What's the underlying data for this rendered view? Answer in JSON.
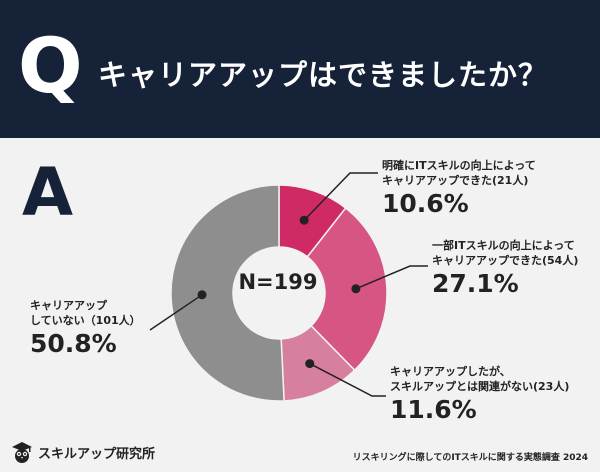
{
  "header": {
    "q_letter": "Q",
    "question": "キャリアアップはできましたか？"
  },
  "answer_letter": "A",
  "center_label": "N=199",
  "chart_data": {
    "type": "pie",
    "slices": [
      {
        "label_lines": [
          "明確にITスキルの向上によって",
          "キャリアアップできた(21人)"
        ],
        "value": 10.6,
        "value_label": "10.6%",
        "color": "#d02a66"
      },
      {
        "label_lines": [
          "一部ITスキルの向上によって",
          "キャリアアップできた(54人)"
        ],
        "value": 27.1,
        "value_label": "27.1%",
        "color": "#d65585"
      },
      {
        "label_lines": [
          "キャリアアップしたが、",
          "スキルアップとは関連がない(23人)"
        ],
        "value": 11.6,
        "value_label": "11.6%",
        "color": "#d67f9f"
      },
      {
        "label_lines": [
          "キャリアアップ",
          "していない（101人）"
        ],
        "value": 50.8,
        "value_label": "50.8%",
        "color": "#8e8e8e"
      }
    ]
  },
  "logo": {
    "icon": "owl-graduate-icon",
    "text": "スキルアップ研究所"
  },
  "footer": "リスキリングに際してのITスキルに関する実態調査 2024"
}
